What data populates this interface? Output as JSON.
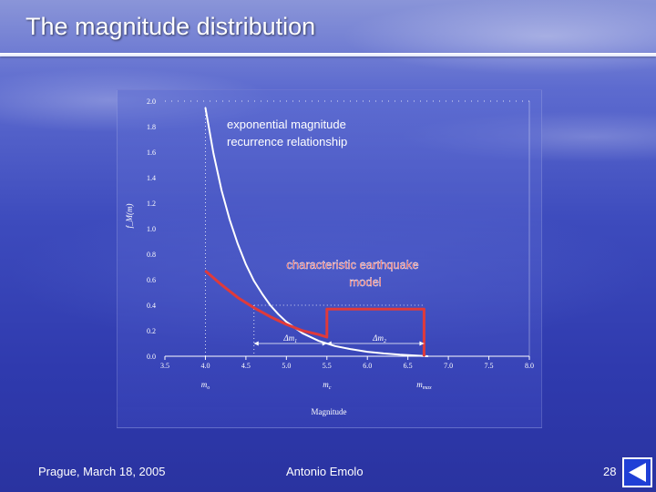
{
  "slide": {
    "title": "The magnitude distribution",
    "footer_left": "Prague, March 18, 2005",
    "footer_center": "Antonio Emolo",
    "page_number": "28"
  },
  "nav": {
    "icon": "left-triangle-icon"
  },
  "colors": {
    "curve": "#ffffff",
    "characteristic": "#e03a3a",
    "axis_text": "#ffffff"
  },
  "chart_data": {
    "type": "line",
    "xlabel": "Magnitude",
    "ylabel": "f_M(m)",
    "xlim": [
      3.5,
      8.0
    ],
    "ylim": [
      0.0,
      2.0
    ],
    "x_ticks": [
      "3.5",
      "4.0",
      "4.5",
      "5.0",
      "5.5",
      "6.0",
      "6.5",
      "7.0",
      "7.5",
      "8.0"
    ],
    "y_ticks": [
      "0.0",
      "0.2",
      "0.4",
      "0.6",
      "0.8",
      "1.0",
      "1.2",
      "1.4",
      "1.6",
      "1.8",
      "2.0"
    ],
    "series": [
      {
        "x": [
          4.0,
          4.1,
          4.2,
          4.3,
          4.4,
          4.5,
          4.6,
          4.7,
          4.8,
          4.9,
          5.0,
          5.2,
          5.4,
          5.6,
          5.8,
          6.0,
          6.2,
          6.4,
          6.6,
          6.75
        ],
        "y": [
          1.95,
          1.59,
          1.3,
          1.07,
          0.88,
          0.72,
          0.59,
          0.49,
          0.4,
          0.33,
          0.27,
          0.18,
          0.12,
          0.08,
          0.055,
          0.035,
          0.022,
          0.012,
          0.005,
          0.0
        ]
      },
      {
        "x": [
          4.0,
          4.2,
          4.4,
          4.6,
          4.8,
          5.0,
          5.2,
          5.4,
          5.5,
          5.5,
          6.7,
          6.7
        ],
        "y": [
          0.67,
          0.56,
          0.46,
          0.38,
          0.31,
          0.25,
          0.2,
          0.17,
          0.15,
          0.37,
          0.37,
          0.0
        ]
      }
    ],
    "annotations": {
      "exponential": [
        "exponential magnitude",
        "recurrence relationship"
      ],
      "characteristic": [
        "characteristic earthquake",
        "model"
      ],
      "dm1": "Δm",
      "dm1_sub": "1",
      "dm2": "Δm",
      "dm2_sub": "2",
      "m0": "m",
      "m0_sub": "o",
      "mc": "m",
      "mc_sub": "c",
      "mmax": "m",
      "mmax_sub": "max"
    },
    "reference_lines": {
      "m0": 4.0,
      "m_dashed": 4.6,
      "mc": 5.5,
      "mmax": 6.7,
      "y_dashed": 0.4
    },
    "grid": false
  }
}
